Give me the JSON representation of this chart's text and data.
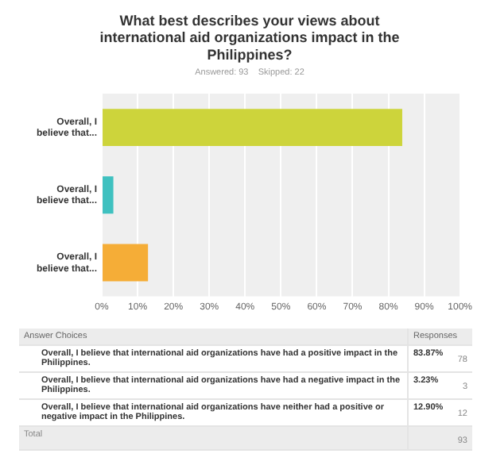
{
  "chart_data": {
    "type": "bar",
    "orientation": "horizontal",
    "title": "What best describes your views about international aid organizations impact in the Philippines?",
    "subtitle": "Answered: 93    Skipped: 22",
    "categories": [
      "Overall, I believe that...",
      "Overall, I believe that...",
      "Overall, I believe that..."
    ],
    "values": [
      83.87,
      3.23,
      12.9
    ],
    "colors": [
      "#cdd43b",
      "#3fc1c0",
      "#f5ad37"
    ],
    "xlim": [
      0,
      100
    ],
    "xticks": [
      {
        "value": 0,
        "label": "0%"
      },
      {
        "value": 10,
        "label": "10%"
      },
      {
        "value": 20,
        "label": "20%"
      },
      {
        "value": 30,
        "label": "30%"
      },
      {
        "value": 40,
        "label": "40%"
      },
      {
        "value": 50,
        "label": "50%"
      },
      {
        "value": 60,
        "label": "60%"
      },
      {
        "value": 70,
        "label": "70%"
      },
      {
        "value": 80,
        "label": "80%"
      },
      {
        "value": 90,
        "label": "90%"
      },
      {
        "value": 100,
        "label": "100%"
      }
    ],
    "grid": "x",
    "annotations": [
      "Answer Choices",
      "Responses",
      "Overall, I believe that international aid organizations have had a positive impact in the Philippines.",
      "83.87%",
      "78",
      "Overall, I believe that international aid organizations have had a negative impact in the Philippines.",
      "3.23%",
      "3",
      "Overall, I believe that international aid organizations have neither had a positive or negative impact in the Philippines.",
      "12.90%",
      "12",
      "Total",
      "93"
    ]
  }
}
